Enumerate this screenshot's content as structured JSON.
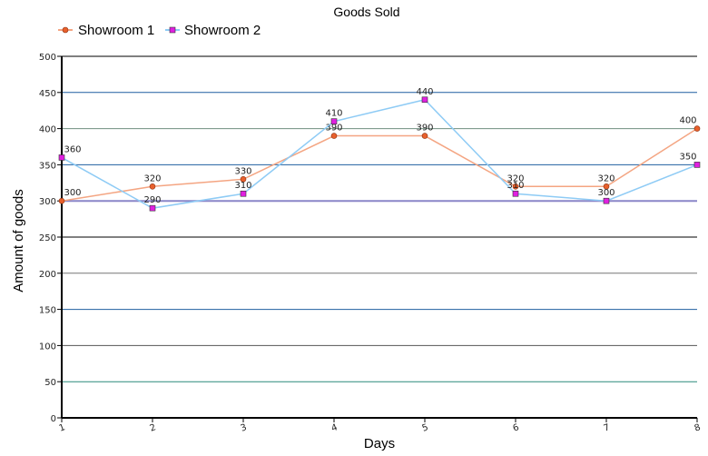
{
  "chart_data": {
    "type": "line",
    "title": "Goods Sold",
    "xlabel": "Days",
    "ylabel": "Amount of goods",
    "x": [
      "1",
      "2",
      "3",
      "4",
      "5",
      "6",
      "7",
      "8"
    ],
    "ylim": [
      0,
      500
    ],
    "yticks": [
      "0",
      "50",
      "100",
      "150",
      "200",
      "250",
      "300",
      "350",
      "400",
      "450",
      "500"
    ],
    "grid": true,
    "legend_position": "top-left",
    "series": [
      {
        "name": "Showroom 1",
        "values": [
          300,
          320,
          330,
          390,
          390,
          320,
          320,
          400
        ],
        "line_color": "#f4a582",
        "marker": "circle",
        "marker_color": "#e8602c"
      },
      {
        "name": "Showroom 2",
        "values": [
          360,
          290,
          310,
          410,
          440,
          310,
          300,
          350
        ],
        "line_color": "#8ecbf5",
        "marker": "square",
        "marker_color": "#e020e0"
      }
    ],
    "grid_colors": [
      "#000000",
      "#2a8a7a",
      "#555555",
      "#1f5fa0",
      "#777777",
      "#000000",
      "#8a86c8",
      "#1f5fa0",
      "#6f8f80",
      "#1f5fa0",
      "#000000"
    ]
  }
}
